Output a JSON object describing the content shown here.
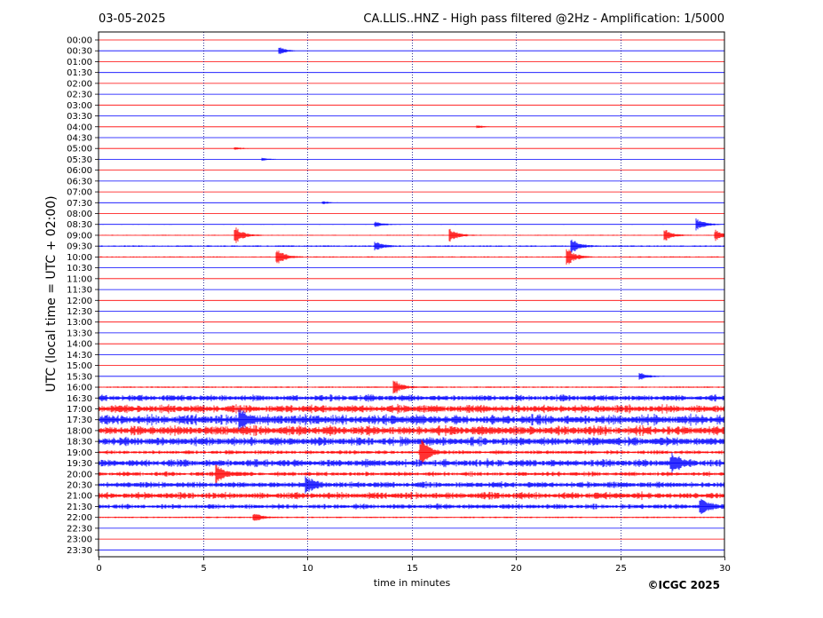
{
  "header": {
    "date": "03-05-2025",
    "title": "CA.LLIS..HNZ - High pass filtered @2Hz - Amplification: 1/5000"
  },
  "footer": {
    "copyright": "©ICGC 2025"
  },
  "chart_data": {
    "type": "line",
    "title": "CA.LLIS..HNZ - High pass filtered @2Hz - Amplification: 1/5000",
    "xlabel": "time in minutes",
    "ylabel": "UTC (local time = UTC + 02:00)",
    "xlim": [
      0,
      30
    ],
    "x_ticks": [
      "0",
      "5",
      "10",
      "15",
      "20",
      "25",
      "30"
    ],
    "row_labels": [
      "00:00",
      "00:30",
      "01:00",
      "01:30",
      "02:00",
      "02:30",
      "03:00",
      "03:30",
      "04:00",
      "04:30",
      "05:00",
      "05:30",
      "06:00",
      "06:30",
      "07:00",
      "07:30",
      "08:00",
      "08:30",
      "09:00",
      "09:30",
      "10:00",
      "10:30",
      "11:00",
      "11:30",
      "12:00",
      "12:30",
      "13:00",
      "13:30",
      "14:00",
      "14:30",
      "15:00",
      "15:30",
      "16:00",
      "16:30",
      "17:00",
      "17:30",
      "18:00",
      "18:30",
      "19:00",
      "19:30",
      "20:00",
      "20:30",
      "21:00",
      "21:30",
      "22:00",
      "22:30",
      "23:00",
      "23:30"
    ],
    "trace_colors": [
      "#ff0000",
      "#0000ff"
    ],
    "trace_color_order": "alternating, starting red at 00:00",
    "grid": "vertical dotted lines every 5 minutes",
    "noise_levels": [
      0.15,
      0.15,
      0.15,
      0.15,
      0.15,
      0.15,
      0.15,
      0.15,
      0.2,
      0.15,
      0.2,
      0.2,
      0.2,
      0.2,
      0.2,
      0.2,
      0.2,
      0.3,
      0.4,
      0.6,
      0.5,
      0.3,
      0.3,
      0.2,
      0.2,
      0.2,
      0.2,
      0.2,
      0.2,
      0.2,
      0.3,
      0.3,
      0.6,
      2.0,
      2.6,
      3.2,
      3.0,
      2.8,
      1.3,
      2.4,
      1.4,
      2.0,
      2.2,
      1.6,
      0.6,
      0.2,
      0.2,
      0.2
    ],
    "events": [
      {
        "row": "00:30",
        "minute": 8.7,
        "amplitude": 4
      },
      {
        "row": "04:00",
        "minute": 18.2,
        "amplitude": 1.5
      },
      {
        "row": "05:00",
        "minute": 6.6,
        "amplitude": 1.5
      },
      {
        "row": "05:30",
        "minute": 7.9,
        "amplitude": 1.5
      },
      {
        "row": "07:30",
        "minute": 10.8,
        "amplitude": 1.5
      },
      {
        "row": "08:30",
        "minute": 13.3,
        "amplitude": 3
      },
      {
        "row": "08:30",
        "minute": 28.7,
        "amplitude": 7
      },
      {
        "row": "09:00",
        "minute": 6.6,
        "amplitude": 9
      },
      {
        "row": "09:00",
        "minute": 16.9,
        "amplitude": 7
      },
      {
        "row": "09:00",
        "minute": 27.2,
        "amplitude": 6
      },
      {
        "row": "09:00",
        "minute": 29.6,
        "amplitude": 6
      },
      {
        "row": "09:30",
        "minute": 13.3,
        "amplitude": 5
      },
      {
        "row": "09:30",
        "minute": 22.7,
        "amplitude": 9
      },
      {
        "row": "10:00",
        "minute": 8.6,
        "amplitude": 8
      },
      {
        "row": "10:00",
        "minute": 22.5,
        "amplitude": 10
      },
      {
        "row": "15:30",
        "minute": 26.0,
        "amplitude": 4
      },
      {
        "row": "16:00",
        "minute": 14.2,
        "amplitude": 8
      },
      {
        "row": "17:30",
        "minute": 6.8,
        "amplitude": 10
      },
      {
        "row": "19:00",
        "minute": 15.5,
        "amplitude": 14
      },
      {
        "row": "19:30",
        "minute": 27.5,
        "amplitude": 9
      },
      {
        "row": "20:00",
        "minute": 5.7,
        "amplitude": 10
      },
      {
        "row": "20:30",
        "minute": 10.0,
        "amplitude": 7
      },
      {
        "row": "21:30",
        "minute": 28.9,
        "amplitude": 8
      },
      {
        "row": "22:00",
        "minute": 7.5,
        "amplitude": 5
      }
    ]
  }
}
